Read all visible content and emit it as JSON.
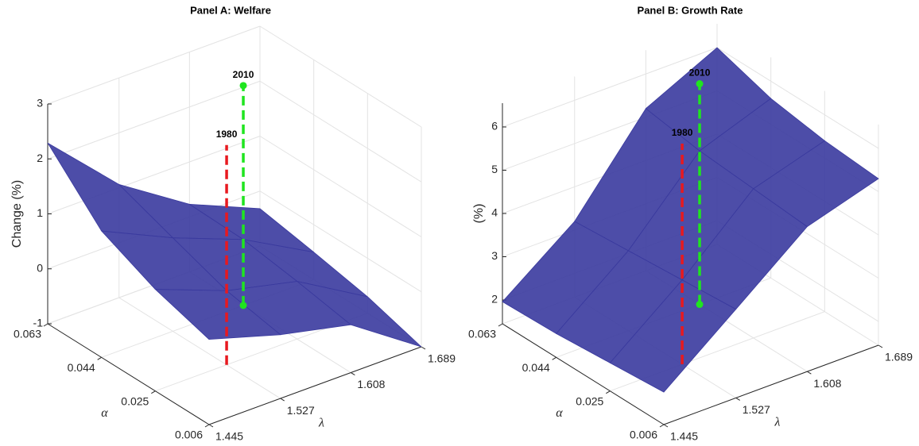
{
  "chart_data": [
    {
      "type": "surface",
      "title": "Panel A: Welfare",
      "zlabel": "Change (%)",
      "xlabel": "λ",
      "ylabel": "α",
      "x": [
        1.445,
        1.527,
        1.608,
        1.689
      ],
      "y": [
        0.006,
        0.025,
        0.044,
        0.063
      ],
      "z": [
        [
          0.55,
          0.16,
          -0.13,
          -1.0
        ],
        [
          0.85,
          0.35,
          0.05,
          -0.7
        ],
        [
          1.3,
          0.7,
          0.2,
          -0.5
        ],
        [
          2.29,
          1.06,
          0.23,
          -0.32
        ]
      ],
      "color": "#3a3a9e",
      "xlim": [
        1.445,
        1.689
      ],
      "ylim": [
        0.006,
        0.063
      ],
      "zlim": [
        -1,
        3
      ],
      "xticks": [
        1.445,
        1.527,
        1.608,
        1.689
      ],
      "yticks": [
        0.006,
        0.025,
        0.044,
        0.063
      ],
      "zticks": [
        -1,
        0,
        1,
        2,
        3
      ],
      "grid": true,
      "markers": [
        {
          "label": "1980",
          "x": 1.527,
          "y": 0.025,
          "color": "#e8191f",
          "marker_style": "none"
        },
        {
          "label": "2010",
          "x": 1.608,
          "y": 0.044,
          "color": "#1fe51f",
          "marker_style": "circle"
        }
      ]
    },
    {
      "type": "surface",
      "title": "Panel B: Growth Rate",
      "zlabel": "(%)",
      "xlabel": "λ",
      "ylabel": "α",
      "x": [
        1.445,
        1.527,
        1.608,
        1.689
      ],
      "y": [
        0.006,
        0.025,
        0.044,
        0.063
      ],
      "z": [
        [
          2.2,
          3.5,
          4.8,
          5.3
        ],
        [
          2.1,
          3.4,
          4.9,
          5.4
        ],
        [
          2.0,
          3.3,
          5.0,
          5.6
        ],
        [
          1.96,
          3.2,
          5.2,
          6.0
        ]
      ],
      "color": "#3a3a9e",
      "xlim": [
        1.445,
        1.689
      ],
      "ylim": [
        0.006,
        0.063
      ],
      "zlim": [
        1.45,
        6.55
      ],
      "xticks": [
        1.445,
        1.527,
        1.608,
        1.689
      ],
      "yticks": [
        0.006,
        0.025,
        0.044,
        0.063
      ],
      "zticks": [
        2,
        3,
        4,
        5,
        6
      ],
      "grid": true,
      "markers": [
        {
          "label": "1980",
          "x": 1.527,
          "y": 0.025,
          "color": "#e8191f",
          "marker_style": "none"
        },
        {
          "label": "2010",
          "x": 1.608,
          "y": 0.044,
          "color": "#1fe51f",
          "marker_style": "circle"
        }
      ]
    }
  ]
}
